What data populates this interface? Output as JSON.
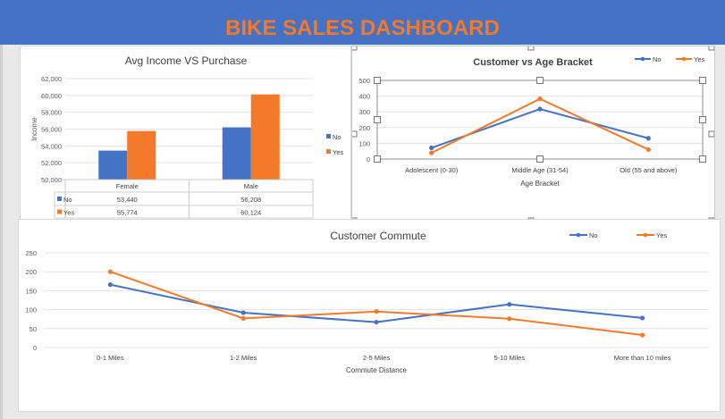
{
  "dashboard": {
    "title": "BIKE SALES DASHBOARD"
  },
  "colors": {
    "banner": "#4472c4",
    "title": "#f4792a",
    "no": "#4472c4",
    "yes": "#f4792a"
  },
  "chart_data": [
    {
      "type": "bar",
      "title": "Avg Income VS Purchase",
      "ylabel": "Income",
      "categories": [
        "Female",
        "Male"
      ],
      "series": [
        {
          "name": "No",
          "values": [
            53440,
            56208
          ],
          "labels": [
            "53,440",
            "56,208"
          ]
        },
        {
          "name": "Yes",
          "values": [
            55774,
            60124
          ],
          "labels": [
            "55,774",
            "60,124"
          ]
        }
      ],
      "ylim": [
        50000,
        62000
      ],
      "yticks": [
        "50,000",
        "52,000",
        "54,000",
        "56,000",
        "58,000",
        "60,000",
        "62,000"
      ],
      "legend": "right",
      "data_table": true
    },
    {
      "type": "line",
      "title": "Customer vs Age Bracket",
      "xlabel": "Age Bracket",
      "categories": [
        "Adolescent (0-30)",
        "Middle Age (31-54)",
        "Old (55 and above)"
      ],
      "series": [
        {
          "name": "No",
          "values": [
            71,
            318,
            132
          ]
        },
        {
          "name": "Yes",
          "values": [
            39,
            383,
            60
          ]
        }
      ],
      "ylim": [
        0,
        500
      ],
      "yticks": [
        "0",
        "100",
        "200",
        "300",
        "400",
        "500"
      ],
      "legend": "top-right"
    },
    {
      "type": "line",
      "title": "Customer Commute",
      "xlabel": "Commute Distance",
      "categories": [
        "0-1 Miles",
        "1-2 Miles",
        "2-5 Miles",
        "5-10 Miles",
        "More than 10 miles"
      ],
      "series": [
        {
          "name": "No",
          "values": [
            166,
            92,
            67,
            114,
            78
          ]
        },
        {
          "name": "Yes",
          "values": [
            200,
            77,
            95,
            76,
            33
          ]
        }
      ],
      "ylim": [
        0,
        250
      ],
      "yticks": [
        "0",
        "50",
        "100",
        "150",
        "200",
        "250"
      ],
      "legend": "top-right"
    }
  ]
}
